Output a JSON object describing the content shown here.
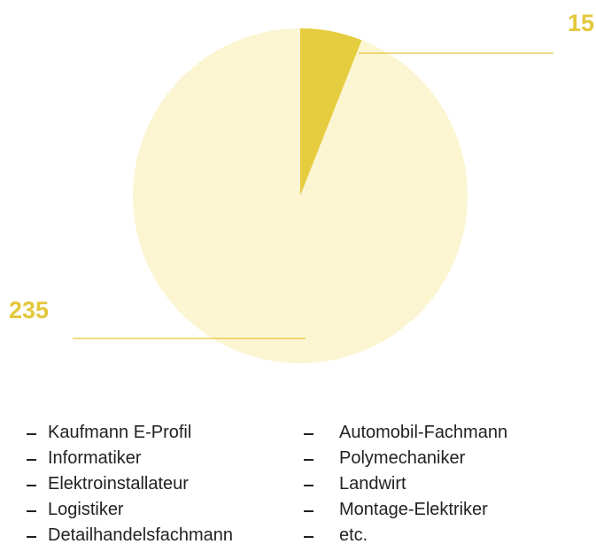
{
  "chart_data": {
    "type": "pie",
    "values": [
      15,
      235
    ],
    "colors": [
      "#e5cd3f",
      "#fbf5d2"
    ]
  },
  "list": {
    "column1": [
      "Kaufmann E-Profil",
      "Informatiker",
      "Elektroinstallateur",
      "Logistiker",
      "Detailhandelsfachmann"
    ],
    "column2": [
      "Automobil-Fachmann",
      "Polymechaniker",
      "Landwirt",
      "Montage-Elektriker",
      "etc."
    ]
  }
}
